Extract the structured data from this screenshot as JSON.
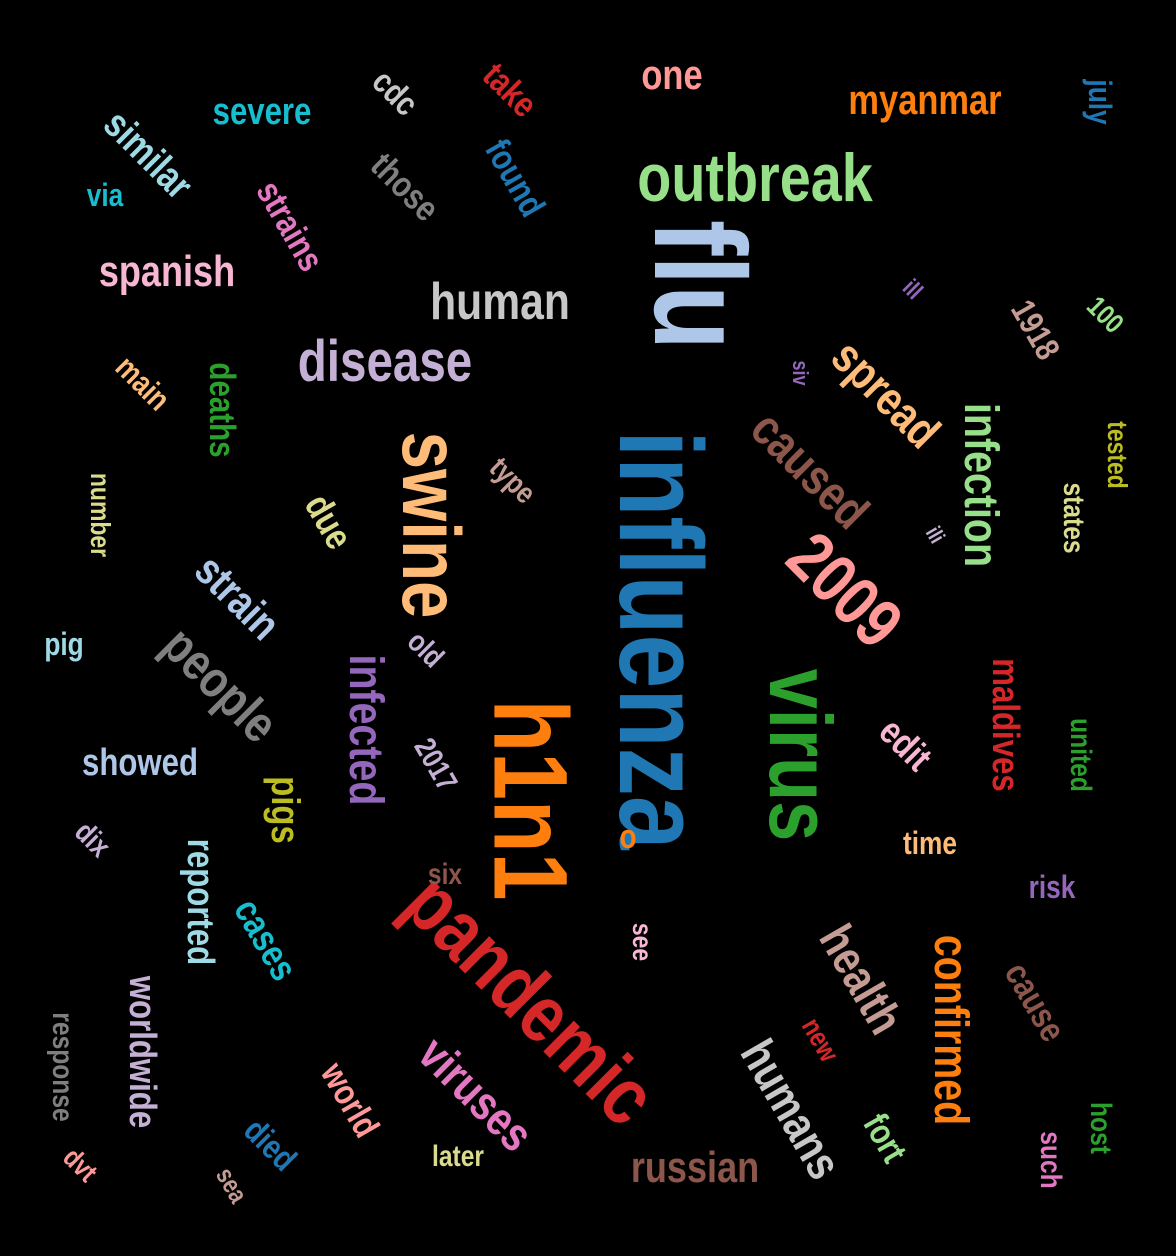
{
  "words": [
    {
      "text": "influenza",
      "color": "#1f77b4"
    },
    {
      "text": "flu",
      "color": "#aec7e8"
    },
    {
      "text": "swine",
      "color": "#ffbb78"
    },
    {
      "text": "h1n1",
      "color": "#ff7f0e"
    },
    {
      "text": "virus",
      "color": "#2ca02c"
    },
    {
      "text": "pandemic",
      "color": "#d62728"
    },
    {
      "text": "outbreak",
      "color": "#98df8a"
    },
    {
      "text": "2009",
      "color": "#ff9896"
    },
    {
      "text": "disease",
      "color": "#c5b0d5"
    },
    {
      "text": "human",
      "color": "#c7c7c7"
    },
    {
      "text": "people",
      "color": "#7f7f7f"
    },
    {
      "text": "caused",
      "color": "#8c564b"
    },
    {
      "text": "infection",
      "color": "#98df8a"
    },
    {
      "text": "spread",
      "color": "#ffbb78"
    },
    {
      "text": "infected",
      "color": "#9467bd"
    },
    {
      "text": "health",
      "color": "#c49c94"
    },
    {
      "text": "confirmed",
      "color": "#ff7f0e"
    },
    {
      "text": "viruses",
      "color": "#e377c2"
    },
    {
      "text": "humans",
      "color": "#c7c7c7"
    },
    {
      "text": "russian",
      "color": "#8c564b"
    },
    {
      "text": "spanish",
      "color": "#f7b6d2"
    },
    {
      "text": "similar",
      "color": "#9edae5"
    },
    {
      "text": "severe",
      "color": "#17becf"
    },
    {
      "text": "strains",
      "color": "#e377c2"
    },
    {
      "text": "those",
      "color": "#7f7f7f"
    },
    {
      "text": "found",
      "color": "#1f77b4"
    },
    {
      "text": "cdc",
      "color": "#c7c7c7"
    },
    {
      "text": "take",
      "color": "#d62728"
    },
    {
      "text": "one",
      "color": "#ff9896"
    },
    {
      "text": "myanmar",
      "color": "#ff7f0e"
    },
    {
      "text": "july",
      "color": "#1f77b4"
    },
    {
      "text": "via",
      "color": "#17becf"
    },
    {
      "text": "deaths",
      "color": "#2ca02c"
    },
    {
      "text": "main",
      "color": "#ffbb78"
    },
    {
      "text": "number",
      "color": "#dbdb8d"
    },
    {
      "text": "due",
      "color": "#dbdb8d"
    },
    {
      "text": "strain",
      "color": "#aec7e8"
    },
    {
      "text": "type",
      "color": "#c49c94"
    },
    {
      "text": "pig",
      "color": "#9edae5"
    },
    {
      "text": "showed",
      "color": "#aec7e8"
    },
    {
      "text": "dix",
      "color": "#c5b0d5"
    },
    {
      "text": "response",
      "color": "#7f7f7f"
    },
    {
      "text": "worldwide",
      "color": "#c5b0d5"
    },
    {
      "text": "reported",
      "color": "#9edae5"
    },
    {
      "text": "cases",
      "color": "#17becf"
    },
    {
      "text": "pigs",
      "color": "#bcbd22"
    },
    {
      "text": "2017",
      "color": "#c5b0d5"
    },
    {
      "text": "old",
      "color": "#c5b0d5"
    },
    {
      "text": "six",
      "color": "#8c564b"
    },
    {
      "text": "o",
      "color": "#ff7f0e"
    },
    {
      "text": "see",
      "color": "#f7b6d2"
    },
    {
      "text": "died",
      "color": "#1f77b4"
    },
    {
      "text": "world",
      "color": "#ff9896"
    },
    {
      "text": "later",
      "color": "#dbdb8d"
    },
    {
      "text": "sea",
      "color": "#c49c94"
    },
    {
      "text": "dvt",
      "color": "#ff9896"
    },
    {
      "text": "new",
      "color": "#d62728"
    },
    {
      "text": "fort",
      "color": "#98df8a"
    },
    {
      "text": "such",
      "color": "#e377c2"
    },
    {
      "text": "host",
      "color": "#2ca02c"
    },
    {
      "text": "cause",
      "color": "#8c564b"
    },
    {
      "text": "risk",
      "color": "#9467bd"
    },
    {
      "text": "time",
      "color": "#ffbb78"
    },
    {
      "text": "edit",
      "color": "#f7b6d2"
    },
    {
      "text": "maldives",
      "color": "#d62728"
    },
    {
      "text": "united",
      "color": "#2ca02c"
    },
    {
      "text": "states",
      "color": "#dbdb8d"
    },
    {
      "text": "tested",
      "color": "#bcbd22"
    },
    {
      "text": "ili",
      "color": "#c5b0d5"
    },
    {
      "text": "siv",
      "color": "#9467bd"
    },
    {
      "text": "ill",
      "color": "#9467bd"
    },
    {
      "text": "1918",
      "color": "#c49c94"
    },
    {
      "text": "100",
      "color": "#98df8a"
    }
  ]
}
